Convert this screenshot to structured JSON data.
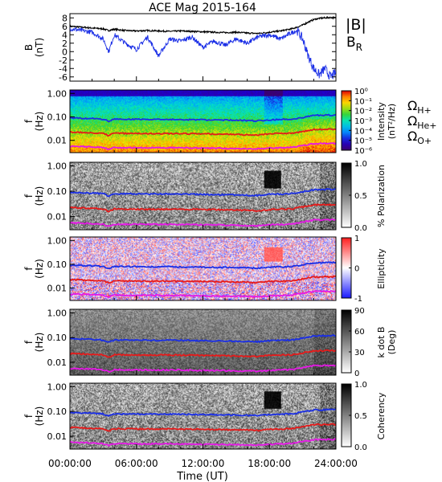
{
  "figure": {
    "title": "ACE Mag 2015-164",
    "xlabel": "Time (UT)",
    "xticks": [
      "00:00:00",
      "06:00:00",
      "12:00:00",
      "18:00:00",
      "24:00:00"
    ],
    "freq_ticks": [
      "1.00",
      "0.10",
      "0.01"
    ],
    "freq_ylabel": "f",
    "freq_yunit": "(Hz)"
  },
  "colors": {
    "total_B": "#000000",
    "radial_B": "#1a2ee6",
    "H_plus": "#1a2ee6",
    "He_plus": "#e61a1a",
    "O_plus": "#e619e6"
  },
  "legends": {
    "total_B": "|B|",
    "radial_B": "B",
    "radial_B_sub": "R",
    "omega": "Ω",
    "H_plus": "H+",
    "He_plus": "He+",
    "O_plus": "O+"
  },
  "chart_data": [
    {
      "type": "line",
      "panel": "field",
      "ylabel": "B",
      "yunit": "(nT)",
      "ylim": [
        -7,
        9
      ],
      "yticks": [
        "8",
        "6",
        "4",
        "2",
        "0",
        "-2",
        "-4",
        "-6"
      ],
      "x_hours": [
        0,
        1,
        2,
        3,
        3.5,
        4,
        5,
        6,
        7,
        8,
        9,
        10,
        11,
        12,
        13,
        14,
        15,
        16,
        17,
        18,
        19,
        20,
        20.5,
        21,
        21.5,
        22,
        22.5,
        23,
        23.5,
        24
      ],
      "series": [
        {
          "name": "|B|",
          "values": [
            6,
            5.8,
            5.6,
            5.4,
            5.0,
            5.3,
            5.0,
            4.9,
            5.0,
            4.9,
            4.8,
            4.9,
            4.8,
            4.7,
            4.6,
            4.5,
            4.6,
            4.4,
            4.3,
            4.6,
            4.9,
            5.4,
            5.8,
            6.3,
            7.0,
            7.6,
            7.9,
            8.0,
            8.1,
            8.0
          ]
        },
        {
          "name": "B_R",
          "values": [
            5.5,
            5.0,
            4.6,
            3.0,
            0.0,
            4.0,
            2.0,
            0.5,
            3.5,
            -1.0,
            3.0,
            2.5,
            3.5,
            1.0,
            2.5,
            1.5,
            3.0,
            2.0,
            3.5,
            4.0,
            3.0,
            4.5,
            5.0,
            3.0,
            -1.0,
            -4.0,
            -5.5,
            -4.0,
            -6.0,
            -5.0
          ]
        }
      ]
    },
    {
      "type": "heatmap",
      "panel": "spectrum",
      "colorbar_label": "Intensity",
      "colorbar_unit": "(nT²/Hz)",
      "colorbar_ticks": [
        "10⁰",
        "10⁻¹",
        "10⁻²",
        "10⁻³",
        "10⁻⁴",
        "10⁻⁵",
        "10⁻⁶"
      ],
      "colorbar_range": [
        -6.5,
        0
      ]
    },
    {
      "type": "heatmap",
      "panel": "polarization",
      "colorbar_label": "% Polarization",
      "colorbar_ticks": [
        "1.0",
        "0.5",
        "0.0"
      ],
      "colorbar_range": [
        0,
        1
      ]
    },
    {
      "type": "heatmap",
      "panel": "ellipticity",
      "colorbar_label": "Ellipticity",
      "colorbar_ticks": [
        "1",
        "0",
        "-1"
      ],
      "colorbar_range": [
        -1,
        1
      ]
    },
    {
      "type": "heatmap",
      "panel": "kdotb",
      "colorbar_label": "k dot B",
      "colorbar_unit": "(Deg)",
      "colorbar_ticks": [
        "90",
        "60",
        "30",
        "0"
      ],
      "colorbar_range": [
        0,
        90
      ]
    },
    {
      "type": "heatmap",
      "panel": "coherency",
      "colorbar_label": "Coherency",
      "colorbar_ticks": [
        "1.0",
        "0.5",
        "0.0"
      ],
      "colorbar_range": [
        0,
        1
      ]
    },
    {
      "type": "line",
      "panel": "gyrofrequency_overlays",
      "ylim_hz": [
        0.003,
        1.4
      ],
      "x_hours": [
        0,
        2,
        3,
        3.5,
        4,
        6,
        9,
        12,
        15,
        17,
        18,
        20,
        21,
        22,
        24
      ],
      "series": [
        {
          "name": "H+",
          "values": [
            0.09,
            0.085,
            0.08,
            0.065,
            0.08,
            0.078,
            0.078,
            0.075,
            0.072,
            0.068,
            0.075,
            0.08,
            0.095,
            0.115,
            0.12
          ]
        },
        {
          "name": "He+",
          "values": [
            0.0225,
            0.021,
            0.02,
            0.016,
            0.02,
            0.0195,
            0.0195,
            0.019,
            0.018,
            0.017,
            0.019,
            0.02,
            0.024,
            0.029,
            0.03
          ]
        },
        {
          "name": "O+",
          "values": [
            0.0056,
            0.0053,
            0.005,
            0.0041,
            0.005,
            0.0049,
            0.0049,
            0.0047,
            0.0045,
            0.0043,
            0.0047,
            0.005,
            0.006,
            0.0072,
            0.0075
          ]
        }
      ]
    }
  ]
}
